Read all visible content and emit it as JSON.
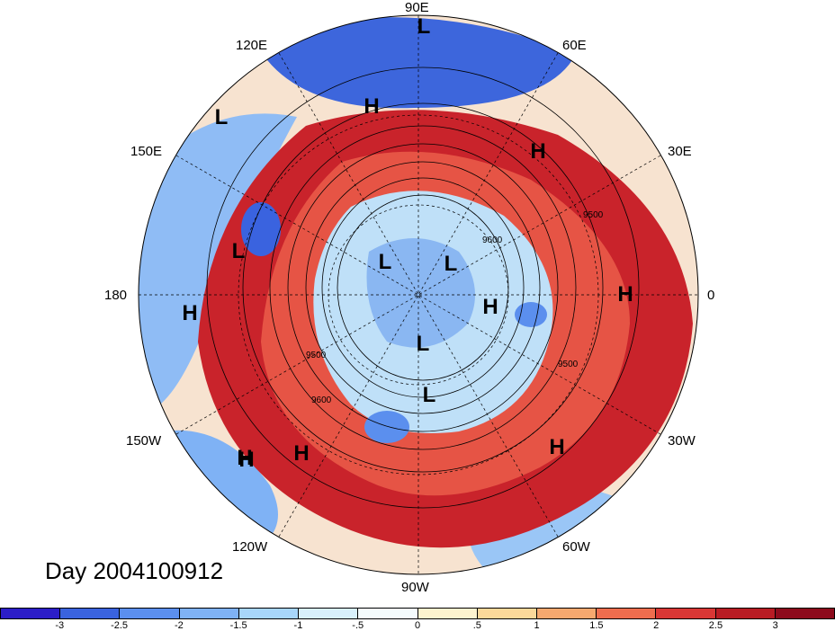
{
  "map": {
    "day_label": "Day 2004100912",
    "contour_labels": [
      "9500",
      "9600"
    ],
    "longitude_labels": [
      "90E",
      "60E",
      "30E",
      "0",
      "30W",
      "60W",
      "90W",
      "120W",
      "150W",
      "180",
      "150E",
      "120E"
    ],
    "pressure_markers": [
      "L",
      "H",
      "L",
      "H",
      "L",
      "L",
      "L",
      "H",
      "H",
      "H",
      "L",
      "L",
      "H",
      "H",
      "H",
      "H"
    ]
  },
  "colorbar": {
    "ticks": [
      "-3",
      "-2.5",
      "-2",
      "-1.5",
      "-1",
      "-.5",
      "0",
      ".5",
      "1",
      "1.5",
      "2",
      "2.5",
      "3"
    ],
    "colors": [
      "#2c1ec8",
      "#3a63df",
      "#5b8fee",
      "#7fb2f5",
      "#a8d6fa",
      "#d8f0fb",
      "#f4fbfc",
      "#fdf3cf",
      "#fbd89a",
      "#f6a86f",
      "#ee6d4e",
      "#d93735",
      "#b81c24",
      "#8d0b1c"
    ]
  }
}
